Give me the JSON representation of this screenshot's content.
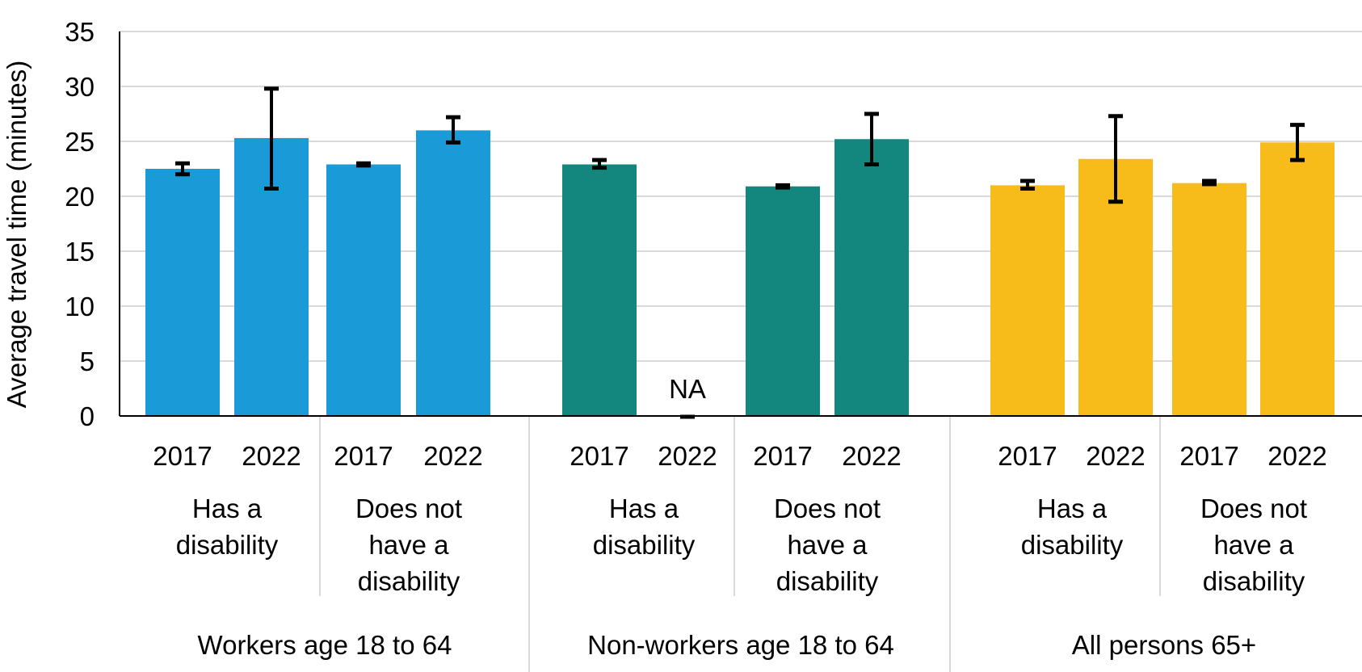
{
  "chart_data": {
    "type": "bar",
    "ylabel": "Average travel time (minutes)",
    "ylim": [
      0,
      35
    ],
    "yticks": [
      0,
      5,
      10,
      15,
      20,
      25,
      30,
      35
    ],
    "grid": true,
    "groups": [
      {
        "label": "Workers age 18 to 64",
        "color": "#1a9ad6",
        "subgroups": [
          {
            "label": [
              "Has a",
              "disability"
            ],
            "bars": [
              {
                "year": "2017",
                "value": 22.5,
                "err_low": 22.0,
                "err_high": 23.0
              },
              {
                "year": "2022",
                "value": 25.3,
                "err_low": 20.7,
                "err_high": 29.8
              }
            ]
          },
          {
            "label": [
              "Does not",
              "have a",
              "disability"
            ],
            "bars": [
              {
                "year": "2017",
                "value": 22.9,
                "err_low": 22.8,
                "err_high": 23.0
              },
              {
                "year": "2022",
                "value": 26.0,
                "err_low": 24.9,
                "err_high": 27.2
              }
            ]
          }
        ]
      },
      {
        "label": "Non-workers age 18 to 64",
        "color": "#13877e",
        "subgroups": [
          {
            "label": [
              "Has a",
              "disability"
            ],
            "bars": [
              {
                "year": "2017",
                "value": 22.9,
                "err_low": 22.6,
                "err_high": 23.3
              },
              {
                "year": "2022",
                "value": null,
                "na_label": "NA"
              }
            ]
          },
          {
            "label": [
              "Does not",
              "have a",
              "disability"
            ],
            "bars": [
              {
                "year": "2017",
                "value": 20.9,
                "err_low": 20.8,
                "err_high": 21.0
              },
              {
                "year": "2022",
                "value": 25.2,
                "err_low": 22.9,
                "err_high": 27.5
              }
            ]
          }
        ]
      },
      {
        "label": "All persons 65+",
        "color": "#f7bc19",
        "subgroups": [
          {
            "label": [
              "Has a",
              "disability"
            ],
            "bars": [
              {
                "year": "2017",
                "value": 21.0,
                "err_low": 20.7,
                "err_high": 21.4
              },
              {
                "year": "2022",
                "value": 23.4,
                "err_low": 19.5,
                "err_high": 27.3
              }
            ]
          },
          {
            "label": [
              "Does not",
              "have a",
              "disability"
            ],
            "bars": [
              {
                "year": "2017",
                "value": 21.2,
                "err_low": 21.1,
                "err_high": 21.4
              },
              {
                "year": "2022",
                "value": 24.9,
                "err_low": 23.3,
                "err_high": 26.5
              }
            ]
          }
        ]
      }
    ]
  }
}
